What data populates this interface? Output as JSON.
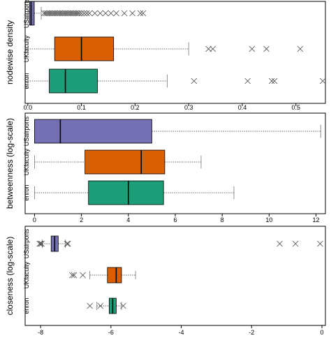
{
  "chart_data": [
    {
      "type": "boxplot",
      "orientation": "horizontal",
      "ylabel": "nodewise density",
      "xlim": [
        -0.005,
        0.555
      ],
      "xticks": [
        0.0,
        0.1,
        0.2,
        0.3,
        0.4,
        0.5
      ],
      "tick_labels": [
        "0.0",
        "0.1",
        "0.2",
        "0.3",
        "0.4",
        "0.5"
      ],
      "categories": [
        "USairports",
        "UKfaculty",
        "enron"
      ],
      "colors": [
        "#7570b3",
        "#d95f02",
        "#1b9e77"
      ],
      "boxes": [
        {
          "whisker_low": 0.0,
          "q1": 0.003,
          "median": 0.006,
          "q3": 0.012,
          "whisker_high": 0.025,
          "outliers": [
            0.03,
            0.033,
            0.036,
            0.039,
            0.042,
            0.045,
            0.048,
            0.051,
            0.054,
            0.057,
            0.06,
            0.063,
            0.066,
            0.069,
            0.072,
            0.075,
            0.078,
            0.081,
            0.084,
            0.087,
            0.09,
            0.093,
            0.096,
            0.1,
            0.105,
            0.11,
            0.115,
            0.125,
            0.135,
            0.145,
            0.155,
            0.165,
            0.18,
            0.195,
            0.21,
            0.215
          ]
        },
        {
          "whisker_low": 0.0,
          "q1": 0.05,
          "median": 0.1,
          "q3": 0.16,
          "whisker_high": 0.3,
          "outliers": [
            0.337,
            0.345,
            0.418,
            0.445,
            0.508
          ]
        },
        {
          "whisker_low": 0.0,
          "q1": 0.04,
          "median": 0.07,
          "q3": 0.13,
          "whisker_high": 0.26,
          "outliers": [
            0.31,
            0.41,
            0.455,
            0.46,
            0.55
          ]
        }
      ]
    },
    {
      "type": "boxplot",
      "orientation": "horizontal",
      "ylabel": "betweenness (log-scale)",
      "xlim": [
        -0.4,
        12.4
      ],
      "xticks": [
        0,
        2,
        4,
        6,
        8,
        10,
        12
      ],
      "tick_labels": [
        "0",
        "2",
        "4",
        "6",
        "8",
        "10",
        "12"
      ],
      "categories": [
        "USairports",
        "UKfaculty",
        "enron"
      ],
      "colors": [
        "#7570b3",
        "#d95f02",
        "#1b9e77"
      ],
      "boxes": [
        {
          "whisker_low": 0.0,
          "q1": 0.0,
          "median": 1.1,
          "q3": 5.0,
          "whisker_high": 12.2,
          "outliers": []
        },
        {
          "whisker_low": 0.0,
          "q1": 2.15,
          "median": 4.55,
          "q3": 5.55,
          "whisker_high": 7.1,
          "outliers": []
        },
        {
          "whisker_low": 0.0,
          "q1": 2.3,
          "median": 4.0,
          "q3": 5.5,
          "whisker_high": 8.5,
          "outliers": []
        }
      ]
    },
    {
      "type": "boxplot",
      "orientation": "horizontal",
      "ylabel": "closeness (log-scale)",
      "xlim": [
        -8.44,
        0.1
      ],
      "xticks": [
        -8,
        -6,
        -4,
        -2,
        0
      ],
      "tick_labels": [
        "-8",
        "-6",
        "-4",
        "-2",
        "0"
      ],
      "categories": [
        "USairports",
        "UKfaculty",
        "enron"
      ],
      "colors": [
        "#7570b3",
        "#d95f02",
        "#1b9e77"
      ],
      "boxes": [
        {
          "whisker_low": -7.95,
          "q1": -7.7,
          "median": -7.6,
          "q3": -7.5,
          "whisker_high": -7.3,
          "outliers": [
            -8.03,
            -8.0,
            -7.97,
            -7.25,
            -7.22,
            -1.2,
            -0.75,
            -0.05
          ]
        },
        {
          "whisker_low": -6.6,
          "q1": -6.1,
          "median": -5.85,
          "q3": -5.7,
          "whisker_high": -5.3,
          "outliers": [
            -7.1,
            -7.05,
            -6.8
          ]
        },
        {
          "whisker_low": -6.4,
          "q1": -6.05,
          "median": -5.95,
          "q3": -5.85,
          "whisker_high": -5.7,
          "outliers": [
            -6.6,
            -6.3,
            -5.65
          ]
        }
      ]
    }
  ]
}
